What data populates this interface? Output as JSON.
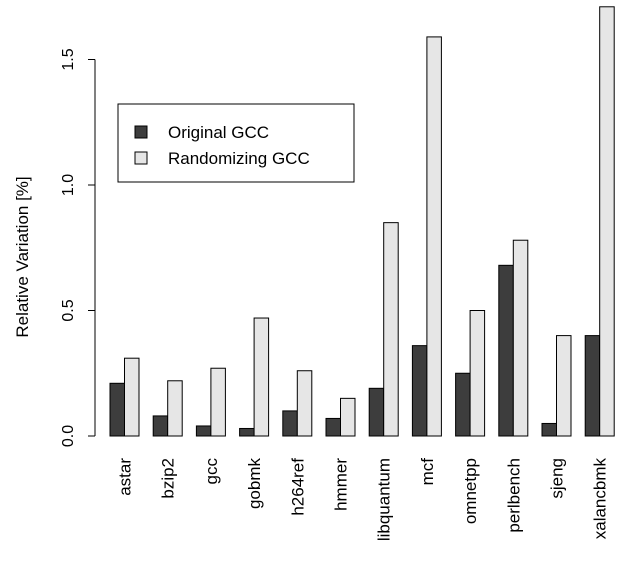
{
  "chart_data": {
    "type": "bar",
    "title": "",
    "xlabel": "",
    "ylabel": "Relative Variation [%]",
    "categories": [
      "astar",
      "bzip2",
      "gcc",
      "gobmk",
      "h264ref",
      "hmmer",
      "libquantum",
      "mcf",
      "omnetpp",
      "perlbench",
      "sjeng",
      "xalancbmk"
    ],
    "series": [
      {
        "name": "Original GCC",
        "color": "#3d3d3d",
        "values": [
          0.21,
          0.08,
          0.04,
          0.03,
          0.1,
          0.07,
          0.19,
          0.36,
          0.25,
          0.68,
          0.05,
          0.4
        ]
      },
      {
        "name": "Randomizing GCC",
        "color": "#e6e6e6",
        "values": [
          0.31,
          0.22,
          0.27,
          0.47,
          0.26,
          0.15,
          0.85,
          1.59,
          0.5,
          0.78,
          0.4,
          1.71
        ]
      }
    ],
    "ylim": [
      0,
      1.72
    ],
    "yticks": [
      "0.0",
      "0.5",
      "1.0",
      "1.5"
    ],
    "legend_position": "upper-left",
    "grid": false
  }
}
